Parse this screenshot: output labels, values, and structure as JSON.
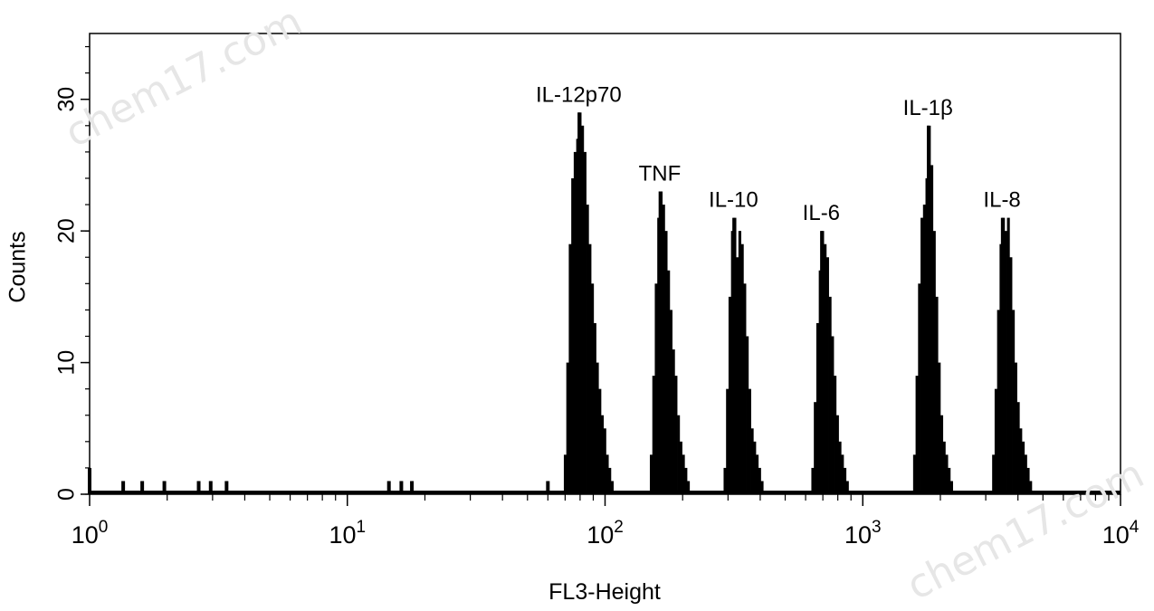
{
  "watermark": "chem17.com",
  "chart_data": {
    "type": "area",
    "title": "",
    "xlabel": "FL3-Height",
    "ylabel": "Counts",
    "xscale": "log",
    "xlim": [
      1,
      10000
    ],
    "ylim": [
      0,
      35
    ],
    "x_ticks": [
      {
        "base": "10",
        "exp": "0",
        "value": 1
      },
      {
        "base": "10",
        "exp": "1",
        "value": 10
      },
      {
        "base": "10",
        "exp": "2",
        "value": 100
      },
      {
        "base": "10",
        "exp": "3",
        "value": 1000
      },
      {
        "base": "10",
        "exp": "4",
        "value": 10000
      }
    ],
    "y_ticks": [
      "0",
      "10",
      "20",
      "30"
    ],
    "grid": false,
    "fill_color": "#000000",
    "peaks": [
      {
        "label": "IL-12p70",
        "center": 79,
        "height": 29,
        "values": [
          3,
          10,
          19,
          24,
          26,
          27,
          29,
          28,
          26,
          22,
          19,
          16,
          13,
          10,
          8,
          6,
          5,
          3,
          2,
          1
        ]
      },
      {
        "label": "TNF",
        "center": 163,
        "height": 23,
        "values": [
          3,
          9,
          16,
          21,
          23,
          22,
          20,
          17,
          14,
          11,
          9,
          6,
          4,
          3,
          2,
          1
        ]
      },
      {
        "label": "IL-10",
        "center": 315,
        "height": 21,
        "values": [
          2,
          8,
          15,
          20,
          21,
          18,
          20,
          19,
          16,
          12,
          8,
          5,
          4,
          3,
          2,
          1
        ]
      },
      {
        "label": "IL-6",
        "center": 690,
        "height": 20,
        "values": [
          2,
          7,
          13,
          17,
          20,
          19,
          18,
          15,
          12,
          9,
          6,
          4,
          3,
          2,
          1
        ]
      },
      {
        "label": "IL-1β",
        "center": 1790,
        "height": 28,
        "values": [
          3,
          9,
          16,
          21,
          22,
          24,
          28,
          25,
          20,
          15,
          10,
          6,
          4,
          3,
          2,
          1
        ]
      },
      {
        "label": "IL-8",
        "center": 3470,
        "height": 21,
        "values": [
          3,
          8,
          14,
          19,
          21,
          20,
          21,
          18,
          14,
          10,
          7,
          5,
          4,
          3,
          2,
          1
        ]
      }
    ],
    "low_events": [
      {
        "x": 1.0,
        "y": 2
      },
      {
        "x": 1.35,
        "y": 1
      },
      {
        "x": 1.6,
        "y": 1
      },
      {
        "x": 1.95,
        "y": 1
      },
      {
        "x": 2.65,
        "y": 1
      },
      {
        "x": 2.95,
        "y": 1
      },
      {
        "x": 3.4,
        "y": 1
      },
      {
        "x": 14.5,
        "y": 1
      },
      {
        "x": 16.2,
        "y": 1
      },
      {
        "x": 17.8,
        "y": 1
      },
      {
        "x": 60,
        "y": 1
      }
    ]
  }
}
